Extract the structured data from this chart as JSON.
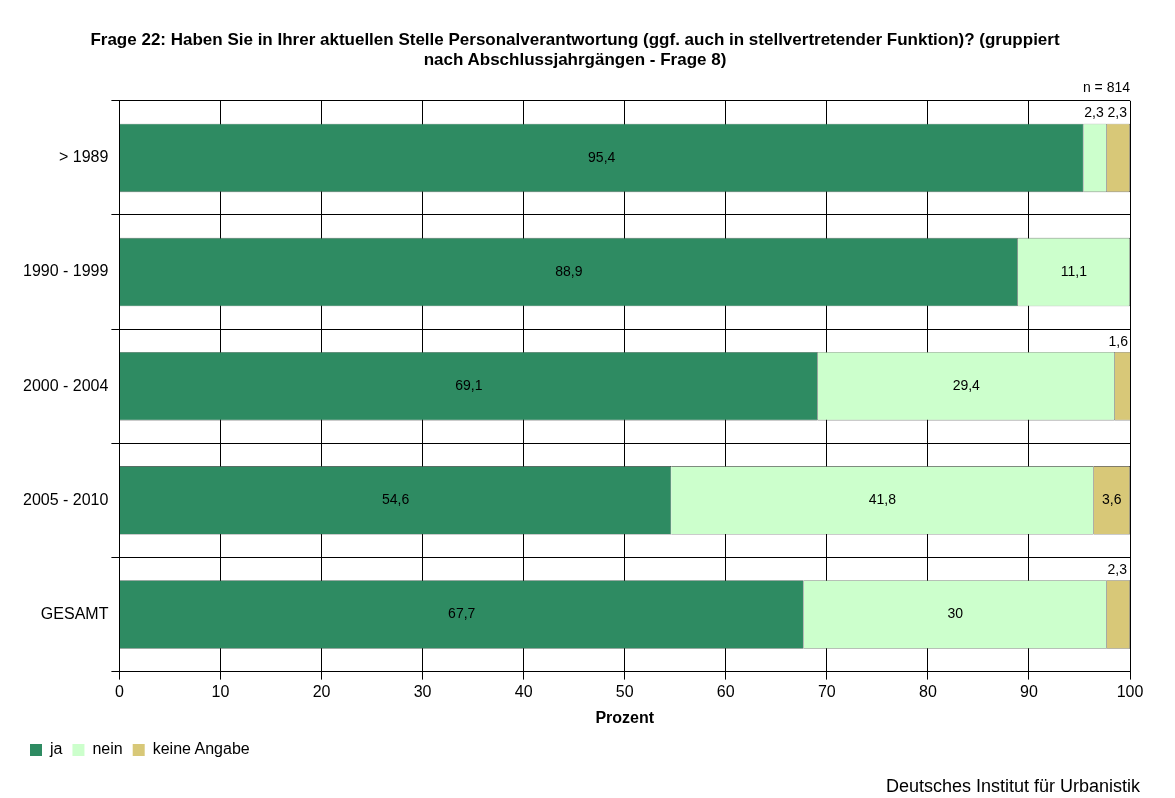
{
  "chart_data": {
    "type": "bar",
    "orientation": "horizontal",
    "stacked": true,
    "title": "Frage 22: Haben Sie in Ihrer aktuellen Stelle Personalverantwortung (ggf. auch in stellvertretender Funktion)? (gruppiert nach Abschlussjahrgängen - Frage 8)",
    "xlabel": "Prozent",
    "categories": [
      "> 1989",
      "1990 - 1999",
      "2000 - 2004",
      "2005 - 2010",
      "GESAMT"
    ],
    "series": [
      {
        "name": "ja",
        "color": "#2e8b62",
        "values": [
          95.4,
          88.9,
          69.1,
          54.6,
          67.7
        ],
        "value_labels": [
          "95,4",
          "88,9",
          "69,1",
          "54,6",
          "67,7"
        ]
      },
      {
        "name": "nein",
        "color": "#ccffcc",
        "values": [
          2.3,
          11.1,
          29.4,
          41.8,
          30
        ],
        "value_labels": [
          "2,3",
          "11,1",
          "29,4",
          "41,8",
          "30"
        ]
      },
      {
        "name": "keine Angabe",
        "color": "#d8c878",
        "values": [
          2.3,
          null,
          1.6,
          3.6,
          2.3
        ],
        "value_labels": [
          "2,3",
          null,
          "1,6",
          "3,6",
          "2,3"
        ]
      }
    ],
    "xlim": [
      0,
      100
    ],
    "xticks": [
      0,
      10,
      20,
      30,
      40,
      50,
      60,
      70,
      80,
      90,
      100
    ],
    "grid": true,
    "legend": "bottom left",
    "annotations": [
      "n = 814",
      "Deutsches Institut für Urbanistik"
    ]
  }
}
